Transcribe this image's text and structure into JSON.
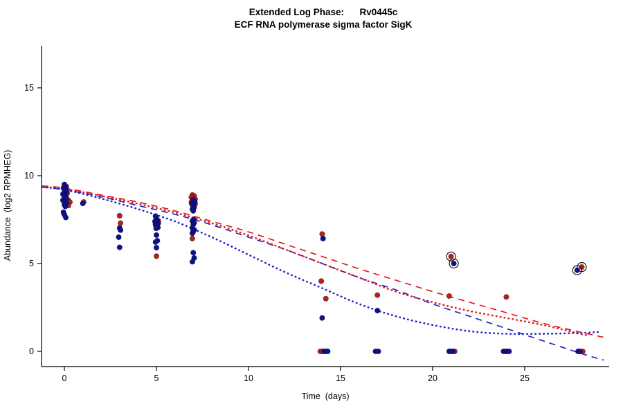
{
  "chart_data": {
    "type": "scatter",
    "title": "Extended Log Phase:      Rv0445c",
    "subtitle": "ECF RNA polymerase sigma factor SigK",
    "xlabel": "Time  (days)",
    "ylabel": "Abundance  (log2 RPMHEG)",
    "xlim": [
      -1.25,
      29.6
    ],
    "ylim": [
      -0.9,
      17.4
    ],
    "xticks": [
      0,
      5,
      10,
      15,
      20,
      25
    ],
    "yticks": [
      0,
      5,
      10,
      15
    ],
    "grid": false,
    "legend": "none",
    "colors": {
      "red_points": "#b5211d",
      "blue_points": "#10108c",
      "red_curve": "#e41a1c",
      "blue_curve": "#2222c8",
      "axis": "#000000",
      "outlier_ring": "#000000"
    },
    "series": [
      {
        "name": "red-points",
        "color": "#b5211d",
        "points": [
          [
            0.15,
            9.0
          ],
          [
            0.05,
            8.8
          ],
          [
            0.2,
            8.62
          ],
          [
            0.3,
            8.5
          ],
          [
            0.12,
            8.42
          ],
          [
            0.22,
            8.3
          ],
          [
            1.05,
            8.5
          ],
          [
            3.0,
            7.72
          ],
          [
            3.05,
            7.3
          ],
          [
            5.0,
            7.52
          ],
          [
            5.1,
            7.42
          ],
          [
            4.95,
            7.2
          ],
          [
            5.0,
            5.42
          ],
          [
            6.95,
            8.9
          ],
          [
            7.05,
            8.85
          ],
          [
            6.9,
            8.78
          ],
          [
            7.0,
            8.72
          ],
          [
            7.1,
            8.66
          ],
          [
            6.95,
            8.6
          ],
          [
            7.05,
            8.55
          ],
          [
            6.9,
            8.5
          ],
          [
            7.0,
            8.45
          ],
          [
            7.1,
            8.4
          ],
          [
            6.95,
            8.35
          ],
          [
            7.05,
            8.3
          ],
          [
            6.95,
            6.42
          ],
          [
            14.0,
            6.68
          ],
          [
            13.95,
            4.0
          ],
          [
            14.2,
            3.0
          ],
          [
            13.9,
            0
          ],
          [
            14.0,
            0
          ],
          [
            17.0,
            3.2
          ],
          [
            20.9,
            3.15
          ],
          [
            21.2,
            0
          ],
          [
            24.0,
            3.1
          ],
          [
            28.15,
            0
          ]
        ]
      },
      {
        "name": "blue-points",
        "color": "#10108c",
        "points": [
          [
            0.0,
            9.5
          ],
          [
            0.1,
            9.38
          ],
          [
            -0.05,
            9.3
          ],
          [
            0.05,
            9.22
          ],
          [
            0.12,
            9.12
          ],
          [
            0.0,
            9.05
          ],
          [
            -0.08,
            8.95
          ],
          [
            0.08,
            8.88
          ],
          [
            0.0,
            8.8
          ],
          [
            0.1,
            8.72
          ],
          [
            -0.08,
            8.6
          ],
          [
            0.02,
            8.5
          ],
          [
            0.12,
            8.45
          ],
          [
            0.0,
            8.35
          ],
          [
            0.05,
            8.25
          ],
          [
            -0.05,
            7.92
          ],
          [
            0.0,
            7.78
          ],
          [
            0.08,
            7.62
          ],
          [
            1.0,
            8.42
          ],
          [
            3.0,
            7.02
          ],
          [
            3.05,
            6.9
          ],
          [
            2.95,
            6.5
          ],
          [
            3.0,
            5.92
          ],
          [
            4.95,
            7.7
          ],
          [
            5.0,
            7.55
          ],
          [
            5.05,
            7.48
          ],
          [
            4.92,
            7.4
          ],
          [
            5.02,
            7.35
          ],
          [
            5.1,
            7.3
          ],
          [
            4.95,
            7.25
          ],
          [
            5.05,
            7.2
          ],
          [
            5.0,
            7.12
          ],
          [
            5.08,
            7.05
          ],
          [
            4.98,
            7.0
          ],
          [
            5.0,
            6.62
          ],
          [
            5.05,
            6.3
          ],
          [
            4.95,
            6.22
          ],
          [
            5.0,
            5.9
          ],
          [
            7.0,
            8.62
          ],
          [
            7.08,
            8.5
          ],
          [
            6.92,
            8.4
          ],
          [
            7.0,
            8.3
          ],
          [
            7.05,
            8.2
          ],
          [
            6.95,
            8.1
          ],
          [
            7.0,
            8.0
          ],
          [
            7.02,
            7.52
          ],
          [
            6.95,
            7.42
          ],
          [
            7.05,
            7.32
          ],
          [
            7.0,
            7.22
          ],
          [
            6.95,
            7.02
          ],
          [
            7.05,
            6.92
          ],
          [
            7.0,
            6.82
          ],
          [
            6.95,
            6.72
          ],
          [
            7.0,
            5.62
          ],
          [
            7.05,
            5.32
          ],
          [
            6.95,
            5.1
          ],
          [
            14.05,
            6.42
          ],
          [
            14.0,
            1.9
          ],
          [
            14.1,
            0
          ],
          [
            14.2,
            0
          ],
          [
            14.3,
            0
          ],
          [
            17.0,
            2.32
          ],
          [
            16.9,
            0
          ],
          [
            17.05,
            0
          ],
          [
            20.9,
            0
          ],
          [
            21.0,
            0
          ],
          [
            21.1,
            0
          ],
          [
            23.85,
            0
          ],
          [
            23.95,
            0
          ],
          [
            24.05,
            0
          ],
          [
            24.15,
            0
          ],
          [
            27.9,
            0
          ],
          [
            28.0,
            0
          ]
        ]
      }
    ],
    "outliers": [
      {
        "x": 21.0,
        "y": 5.4,
        "series": "red"
      },
      {
        "x": 21.15,
        "y": 5.0,
        "series": "blue"
      },
      {
        "x": 28.1,
        "y": 4.8,
        "series": "red"
      },
      {
        "x": 27.85,
        "y": 4.62,
        "series": "blue"
      }
    ],
    "curves": [
      {
        "name": "red-dashed-fit",
        "color": "#e41a1c",
        "style": "dashed",
        "points": [
          [
            -1.2,
            9.42
          ],
          [
            0,
            9.3
          ],
          [
            2,
            8.9
          ],
          [
            4,
            8.5
          ],
          [
            6,
            8.0
          ],
          [
            8,
            7.4
          ],
          [
            10,
            6.8
          ],
          [
            12,
            6.1
          ],
          [
            14,
            5.4
          ],
          [
            16,
            4.7
          ],
          [
            18,
            4.05
          ],
          [
            20,
            3.4
          ],
          [
            22,
            2.8
          ],
          [
            24,
            2.2
          ],
          [
            26,
            1.6
          ],
          [
            28,
            1.1
          ],
          [
            29.3,
            0.8
          ]
        ]
      },
      {
        "name": "blue-dashed-fit",
        "color": "#2222c8",
        "style": "dashed",
        "points": [
          [
            -1.2,
            9.35
          ],
          [
            0,
            9.2
          ],
          [
            2,
            8.8
          ],
          [
            4,
            8.3
          ],
          [
            6,
            7.8
          ],
          [
            8,
            7.2
          ],
          [
            10,
            6.5
          ],
          [
            12,
            5.8
          ],
          [
            14,
            5.0
          ],
          [
            16,
            4.2
          ],
          [
            18,
            3.5
          ],
          [
            20,
            2.7
          ],
          [
            22,
            2.0
          ],
          [
            24,
            1.3
          ],
          [
            26,
            0.6
          ],
          [
            28,
            -0.1
          ],
          [
            29.3,
            -0.5
          ]
        ]
      },
      {
        "name": "red-dotted-fit",
        "color": "#e41a1c",
        "style": "dotted",
        "points": [
          [
            -1.2,
            9.35
          ],
          [
            0,
            9.25
          ],
          [
            2,
            8.85
          ],
          [
            4,
            8.4
          ],
          [
            6,
            7.9
          ],
          [
            8,
            7.3
          ],
          [
            10,
            6.6
          ],
          [
            12,
            5.8
          ],
          [
            14,
            5.0
          ],
          [
            16,
            4.2
          ],
          [
            18,
            3.4
          ],
          [
            20,
            2.8
          ],
          [
            22,
            2.3
          ],
          [
            24,
            1.9
          ],
          [
            26,
            1.5
          ],
          [
            28,
            1.0
          ],
          [
            28.5,
            0.9
          ]
        ]
      },
      {
        "name": "blue-dotted-fit",
        "color": "#2222c8",
        "style": "dotted",
        "points": [
          [
            -1.2,
            9.35
          ],
          [
            0,
            9.2
          ],
          [
            2,
            8.7
          ],
          [
            4,
            8.1
          ],
          [
            6,
            7.4
          ],
          [
            8,
            6.5
          ],
          [
            10,
            5.5
          ],
          [
            12,
            4.5
          ],
          [
            14,
            3.6
          ],
          [
            16,
            2.7
          ],
          [
            18,
            2.0
          ],
          [
            20,
            1.5
          ],
          [
            22,
            1.15
          ],
          [
            24,
            1.0
          ],
          [
            26,
            1.0
          ],
          [
            28,
            1.05
          ],
          [
            29,
            1.1
          ]
        ]
      }
    ]
  }
}
